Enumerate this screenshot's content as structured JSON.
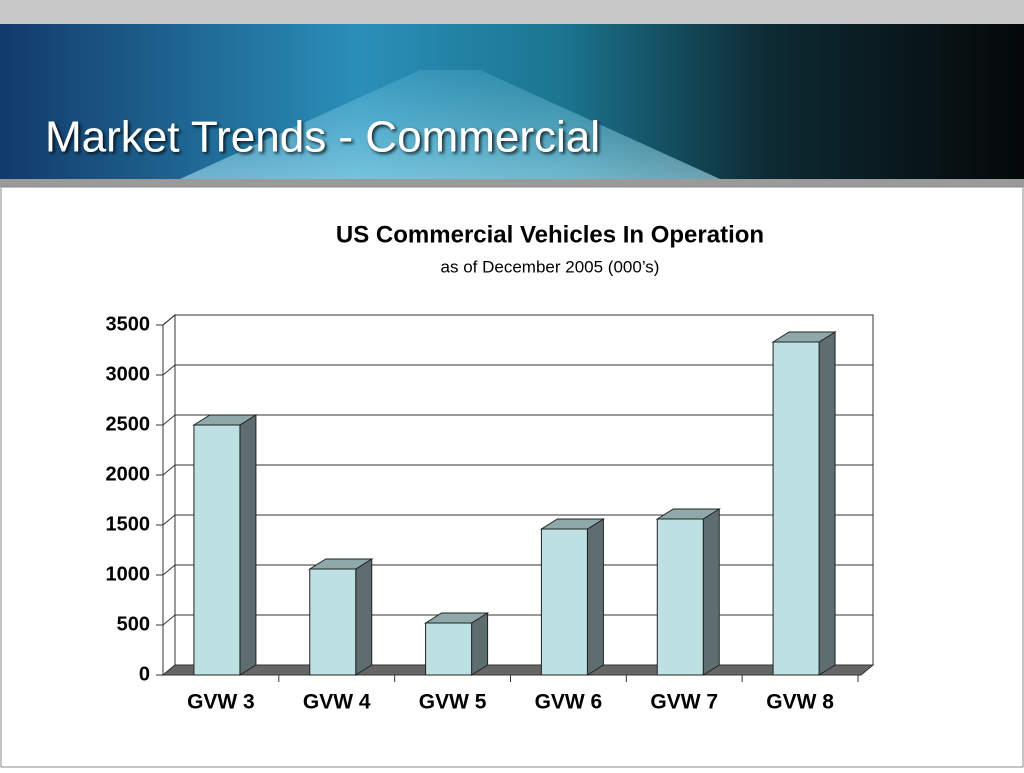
{
  "slide_title": "Market Trends - Commercial",
  "chart_data": {
    "type": "bar3d",
    "title": "US Commercial Vehicles In Operation",
    "subtitle": "as of December 2005 (000’s)",
    "categories": [
      "GVW 3",
      "GVW 4",
      "GVW 5",
      "GVW 6",
      "GVW 7",
      "GVW 8"
    ],
    "values": [
      2500,
      1060,
      520,
      1460,
      1560,
      3330
    ],
    "color": "#bde0e3",
    "side_color": "#5e6e70",
    "top_color": "#8fa9ab",
    "ylim": [
      0,
      3500
    ],
    "yticks": [
      0,
      500,
      1000,
      1500,
      2000,
      2500,
      3000,
      3500
    ],
    "grid": true
  }
}
